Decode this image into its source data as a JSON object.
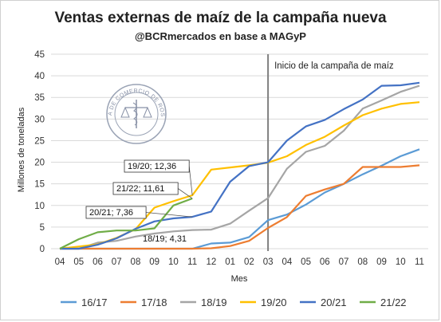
{
  "chart_data": {
    "type": "line",
    "title": "Ventas externas de maíz de la campaña nueva",
    "subtitle": "@BCRmercados en base a MAGyP",
    "xlabel": "Mes",
    "ylabel": "Millones de toneladas",
    "ylim": [
      0,
      45
    ],
    "yticks": [
      0,
      5,
      10,
      15,
      20,
      25,
      30,
      35,
      40,
      45
    ],
    "categories": [
      "04",
      "05",
      "06",
      "07",
      "08",
      "09",
      "10",
      "11",
      "12",
      "01",
      "02",
      "03",
      "04",
      "05",
      "06",
      "07",
      "08",
      "09",
      "10",
      "11"
    ],
    "grid": true,
    "legend_position": "bottom",
    "marker_line": {
      "index": 11,
      "label": "Inicio de la campaña de maíz"
    },
    "series": [
      {
        "name": "16/17",
        "color": "#5b9bd5",
        "values": [
          0,
          0,
          0,
          0,
          0,
          0,
          0,
          0,
          1.2,
          1.4,
          2.7,
          6.6,
          7.9,
          10.2,
          13.0,
          15.0,
          17.2,
          19.2,
          21.4,
          23.0
        ]
      },
      {
        "name": "17/18",
        "color": "#ed7d31",
        "values": [
          0,
          0,
          0,
          0,
          0,
          0,
          0,
          0,
          0.1,
          0.6,
          1.8,
          4.8,
          7.3,
          12.2,
          13.7,
          15.0,
          18.9,
          18.9,
          18.9,
          19.3
        ]
      },
      {
        "name": "18/19",
        "color": "#a5a5a5",
        "values": [
          0,
          0,
          1.4,
          1.8,
          2.8,
          3.5,
          4.0,
          4.31,
          4.4,
          5.8,
          8.8,
          11.7,
          18.5,
          22.4,
          23.8,
          27.3,
          32.4,
          34.3,
          36.3,
          37.7
        ]
      },
      {
        "name": "19/20",
        "color": "#ffc000",
        "values": [
          0,
          0.5,
          1.0,
          2.5,
          4.5,
          9.5,
          11.0,
          12.36,
          18.3,
          18.8,
          19.3,
          19.9,
          21.4,
          24.0,
          25.9,
          28.5,
          30.9,
          32.4,
          33.5,
          33.9
        ]
      },
      {
        "name": "20/21",
        "color": "#4472c4",
        "values": [
          0,
          0,
          0.9,
          2.4,
          4.6,
          6.3,
          7.0,
          7.36,
          8.6,
          15.5,
          19.1,
          20.0,
          25.0,
          28.3,
          29.8,
          32.3,
          34.5,
          37.7,
          37.8,
          38.4
        ]
      },
      {
        "name": "21/22",
        "color": "#70ad47",
        "values": [
          0,
          2.2,
          3.8,
          4.2,
          4.2,
          4.7,
          10.0,
          11.61,
          null,
          null,
          null,
          null,
          null,
          null,
          null,
          null,
          null,
          null,
          null,
          null
        ]
      }
    ],
    "annotations": [
      {
        "text": "19/20; 12,36",
        "series": "19/20",
        "index": 7
      },
      {
        "text": "21/22; 11,61",
        "series": "21/22",
        "index": 7
      },
      {
        "text": "20/21; 7,36",
        "series": "20/21",
        "index": 7
      },
      {
        "text": "18/19; 4,31",
        "series": "18/19",
        "index": 7
      }
    ]
  },
  "logo": {
    "text": "BOLSA DE COMERCIO DE ROSARIO"
  }
}
